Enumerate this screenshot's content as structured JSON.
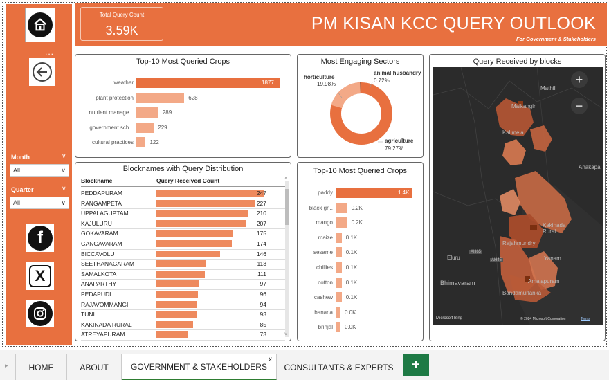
{
  "header": {
    "title": "PM KISAN KCC QUERY OUTLOOK",
    "subtitle": "For Government & Stakeholders",
    "kpi_label": "Total Query Count",
    "kpi_value": "3.59K"
  },
  "sidebar": {
    "dots": "...",
    "month_label": "Month",
    "month_value": "All",
    "quarter_label": "Quarter",
    "quarter_value": "All"
  },
  "top_crops_panel": {
    "title": "Top-10 Most Queried Crops",
    "items": [
      {
        "label": "weather",
        "value": "1877"
      },
      {
        "label": "plant protection",
        "value": "628"
      },
      {
        "label": "nutrient manage...",
        "value": "289"
      },
      {
        "label": "government sch...",
        "value": "229"
      },
      {
        "label": "cultural practices",
        "value": "122"
      }
    ]
  },
  "sectors_panel": {
    "title": "Most Engaging Sectors",
    "items": [
      {
        "name": "horticulture",
        "pct": "19.98%"
      },
      {
        "name": "animal husbandry",
        "pct": "0.72%"
      },
      {
        "name": "agriculture",
        "pct": "79.27%"
      }
    ]
  },
  "map_panel": {
    "title": "Query Received by blocks",
    "labels": {
      "mathill": "Mathill",
      "malkangiri": "Malkangiri",
      "kalimela": "Kalimela",
      "anakapalle": "Anakapa",
      "kakinada_rural": "Kakinada Rural",
      "rajahmundry": "Rajahmundry",
      "yanam": "Yanam",
      "eluru": "Eluru",
      "bhimavaram": "Bhimavaram",
      "amalapuram": "Amalapuram",
      "bandamurlanka": "Bandamurlanka",
      "ah65": "AH65",
      "ah45": "AH45",
      "bing": "Microsoft Bing",
      "copyright": "© 2024 Microsoft Corporation",
      "terms": "Terms"
    }
  },
  "blocks_panel": {
    "title": "Blocknames with Query Distribution",
    "col_block": "Blockname",
    "col_query": "Query Received Count",
    "rows": [
      {
        "name": "PEDDAPURAM",
        "value": "247"
      },
      {
        "name": "RANGAMPETA",
        "value": "227"
      },
      {
        "name": "UPPALAGUPTAM",
        "value": "210"
      },
      {
        "name": "KAJULURU",
        "value": "207"
      },
      {
        "name": "GOKAVARAM",
        "value": "175"
      },
      {
        "name": "GANGAVARAM",
        "value": "174"
      },
      {
        "name": "BICCAVOLU",
        "value": "146"
      },
      {
        "name": "SEETHANAGARAM",
        "value": "113"
      },
      {
        "name": "SAMALKOTA",
        "value": "111"
      },
      {
        "name": "ANAPARTHY",
        "value": "97"
      },
      {
        "name": "PEDAPUDI",
        "value": "96"
      },
      {
        "name": "RAJAVOMMANGI",
        "value": "94"
      },
      {
        "name": "TUNI",
        "value": "93"
      },
      {
        "name": "KAKINADA RURAL",
        "value": "85"
      },
      {
        "name": "ATREYAPURAM",
        "value": "73"
      }
    ]
  },
  "top_crops_panel2": {
    "title": "Top-10 Most Queried Crops",
    "items": [
      {
        "label": "paddy",
        "value": "1.4K"
      },
      {
        "label": "black gr...",
        "value": "0.2K"
      },
      {
        "label": "mango",
        "value": "0.2K"
      },
      {
        "label": "maize",
        "value": "0.1K"
      },
      {
        "label": "sesame",
        "value": "0.1K"
      },
      {
        "label": "chillies",
        "value": "0.1K"
      },
      {
        "label": "cotton",
        "value": "0.1K"
      },
      {
        "label": "cashew",
        "value": "0.1K"
      },
      {
        "label": "banana",
        "value": "0.0K"
      },
      {
        "label": "brinjal",
        "value": "0.0K"
      }
    ]
  },
  "tabs": {
    "home": "HOME",
    "about": "ABOUT",
    "gov": "GOVERNMENT & STAKEHOLDERS",
    "consultants": "CONSULTANTS & EXPERTS",
    "close": "x",
    "add": "+"
  },
  "chart_data": [
    {
      "type": "bar",
      "title": "Top-10 Most Queried Crops",
      "categories": [
        "weather",
        "plant protection",
        "nutrient manage...",
        "government sch...",
        "cultural practices"
      ],
      "values": [
        1877,
        628,
        289,
        229,
        122
      ]
    },
    {
      "type": "pie",
      "title": "Most Engaging Sectors",
      "categories": [
        "agriculture",
        "horticulture",
        "animal husbandry"
      ],
      "values": [
        79.27,
        19.98,
        0.72
      ]
    },
    {
      "type": "bar",
      "title": "Blocknames with Query Distribution",
      "categories": [
        "PEDDAPURAM",
        "RANGAMPETA",
        "UPPALAGUPTAM",
        "KAJULURU",
        "GOKAVARAM",
        "GANGAVARAM",
        "BICCAVOLU",
        "SEETHANAGARAM",
        "SAMALKOTA",
        "ANAPARTHY",
        "PEDAPUDI",
        "RAJAVOMMANGI",
        "TUNI",
        "KAKINADA RURAL",
        "ATREYAPURAM"
      ],
      "values": [
        247,
        227,
        210,
        207,
        175,
        174,
        146,
        113,
        111,
        97,
        96,
        94,
        93,
        85,
        73
      ]
    },
    {
      "type": "bar",
      "title": "Top-10 Most Queried Crops",
      "categories": [
        "paddy",
        "black gr...",
        "mango",
        "maize",
        "sesame",
        "chillies",
        "cotton",
        "cashew",
        "banana",
        "brinjal"
      ],
      "values": [
        1400,
        200,
        200,
        100,
        100,
        100,
        100,
        100,
        0,
        0
      ]
    }
  ],
  "colors": {
    "accent": "#e8703f",
    "bar_light": "#ee8a5e",
    "donut_light": "#f3a987",
    "tab_add": "#1e7a45",
    "map_bg": "#2b2b2b"
  }
}
